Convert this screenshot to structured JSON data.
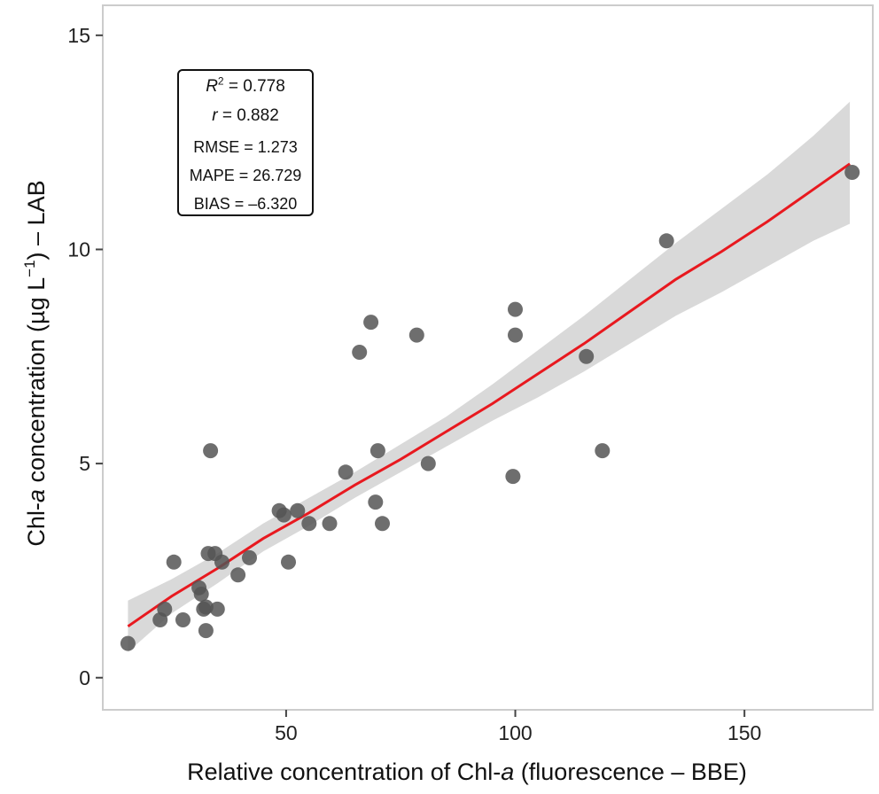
{
  "chart_data": {
    "type": "scatter",
    "xlabel_parts": [
      "Relative concentration of Chl-",
      "a",
      " (fluorescence – BBE)"
    ],
    "ylabel_parts": [
      "Chl-",
      "a",
      " concentration (µg L",
      "−1",
      ") – LAB"
    ],
    "xlim": [
      10,
      178
    ],
    "ylim": [
      -0.75,
      15.7
    ],
    "xticks": [
      50,
      100,
      150
    ],
    "yticks": [
      0,
      5,
      10,
      15
    ],
    "grid": false,
    "stats": {
      "r2_symbol": "R",
      "r2_sup": "2",
      "r2_value": " = 0.778",
      "r_symbol": "r",
      "r_value": " = 0.882",
      "rmse": "RMSE = 1.273",
      "mape": "MAPE = 26.729",
      "bias": "BIAS = –6.320"
    },
    "colors": {
      "points": "#555555",
      "fit_line": "#e8191f",
      "confidence_band": "#d9d9d9",
      "frame": "#cccccc"
    },
    "fit": {
      "x": [
        15.5,
        25,
        35,
        45,
        55,
        65,
        75,
        85,
        95,
        105,
        115,
        125,
        135,
        145,
        155,
        165,
        173
      ],
      "y": [
        1.2,
        1.9,
        2.55,
        3.25,
        3.85,
        4.5,
        5.1,
        5.75,
        6.4,
        7.1,
        7.8,
        8.55,
        9.3,
        9.95,
        10.65,
        11.4,
        12.0
      ]
    },
    "band": {
      "x": [
        15.5,
        25,
        35,
        45,
        55,
        65,
        75,
        85,
        95,
        105,
        115,
        125,
        135,
        145,
        155,
        165,
        173
      ],
      "lower": [
        0.6,
        1.5,
        2.2,
        2.95,
        3.55,
        4.2,
        4.8,
        5.4,
        6.0,
        6.55,
        7.15,
        7.8,
        8.45,
        9.0,
        9.6,
        10.2,
        10.6
      ],
      "upper": [
        1.8,
        2.3,
        2.9,
        3.6,
        4.2,
        4.8,
        5.45,
        6.1,
        6.85,
        7.65,
        8.45,
        9.3,
        10.15,
        10.95,
        11.75,
        12.65,
        13.45
      ]
    },
    "points": [
      {
        "x": 15.5,
        "y": 0.8
      },
      {
        "x": 22.5,
        "y": 1.35
      },
      {
        "x": 23.5,
        "y": 1.6
      },
      {
        "x": 25.5,
        "y": 2.7
      },
      {
        "x": 27.5,
        "y": 1.35
      },
      {
        "x": 31.0,
        "y": 2.1
      },
      {
        "x": 31.5,
        "y": 1.95
      },
      {
        "x": 32.0,
        "y": 1.6
      },
      {
        "x": 32.5,
        "y": 1.65
      },
      {
        "x": 32.5,
        "y": 1.1
      },
      {
        "x": 33.0,
        "y": 2.9
      },
      {
        "x": 33.5,
        "y": 5.3
      },
      {
        "x": 34.5,
        "y": 2.9
      },
      {
        "x": 35.0,
        "y": 1.6
      },
      {
        "x": 36.0,
        "y": 2.7
      },
      {
        "x": 39.5,
        "y": 2.4
      },
      {
        "x": 42.0,
        "y": 2.8
      },
      {
        "x": 48.5,
        "y": 3.9
      },
      {
        "x": 49.5,
        "y": 3.8
      },
      {
        "x": 50.5,
        "y": 2.7
      },
      {
        "x": 52.5,
        "y": 3.9
      },
      {
        "x": 55.0,
        "y": 3.6
      },
      {
        "x": 59.5,
        "y": 3.6
      },
      {
        "x": 63.0,
        "y": 4.8
      },
      {
        "x": 66.0,
        "y": 7.6
      },
      {
        "x": 68.5,
        "y": 8.3
      },
      {
        "x": 69.5,
        "y": 4.1
      },
      {
        "x": 70.0,
        "y": 5.3
      },
      {
        "x": 71.0,
        "y": 3.6
      },
      {
        "x": 78.5,
        "y": 8.0
      },
      {
        "x": 81.0,
        "y": 5.0
      },
      {
        "x": 99.5,
        "y": 4.7
      },
      {
        "x": 100.0,
        "y": 8.6
      },
      {
        "x": 100.0,
        "y": 8.0
      },
      {
        "x": 115.5,
        "y": 7.5
      },
      {
        "x": 119.0,
        "y": 5.3
      },
      {
        "x": 133.0,
        "y": 10.2
      },
      {
        "x": 173.5,
        "y": 11.8
      }
    ]
  }
}
